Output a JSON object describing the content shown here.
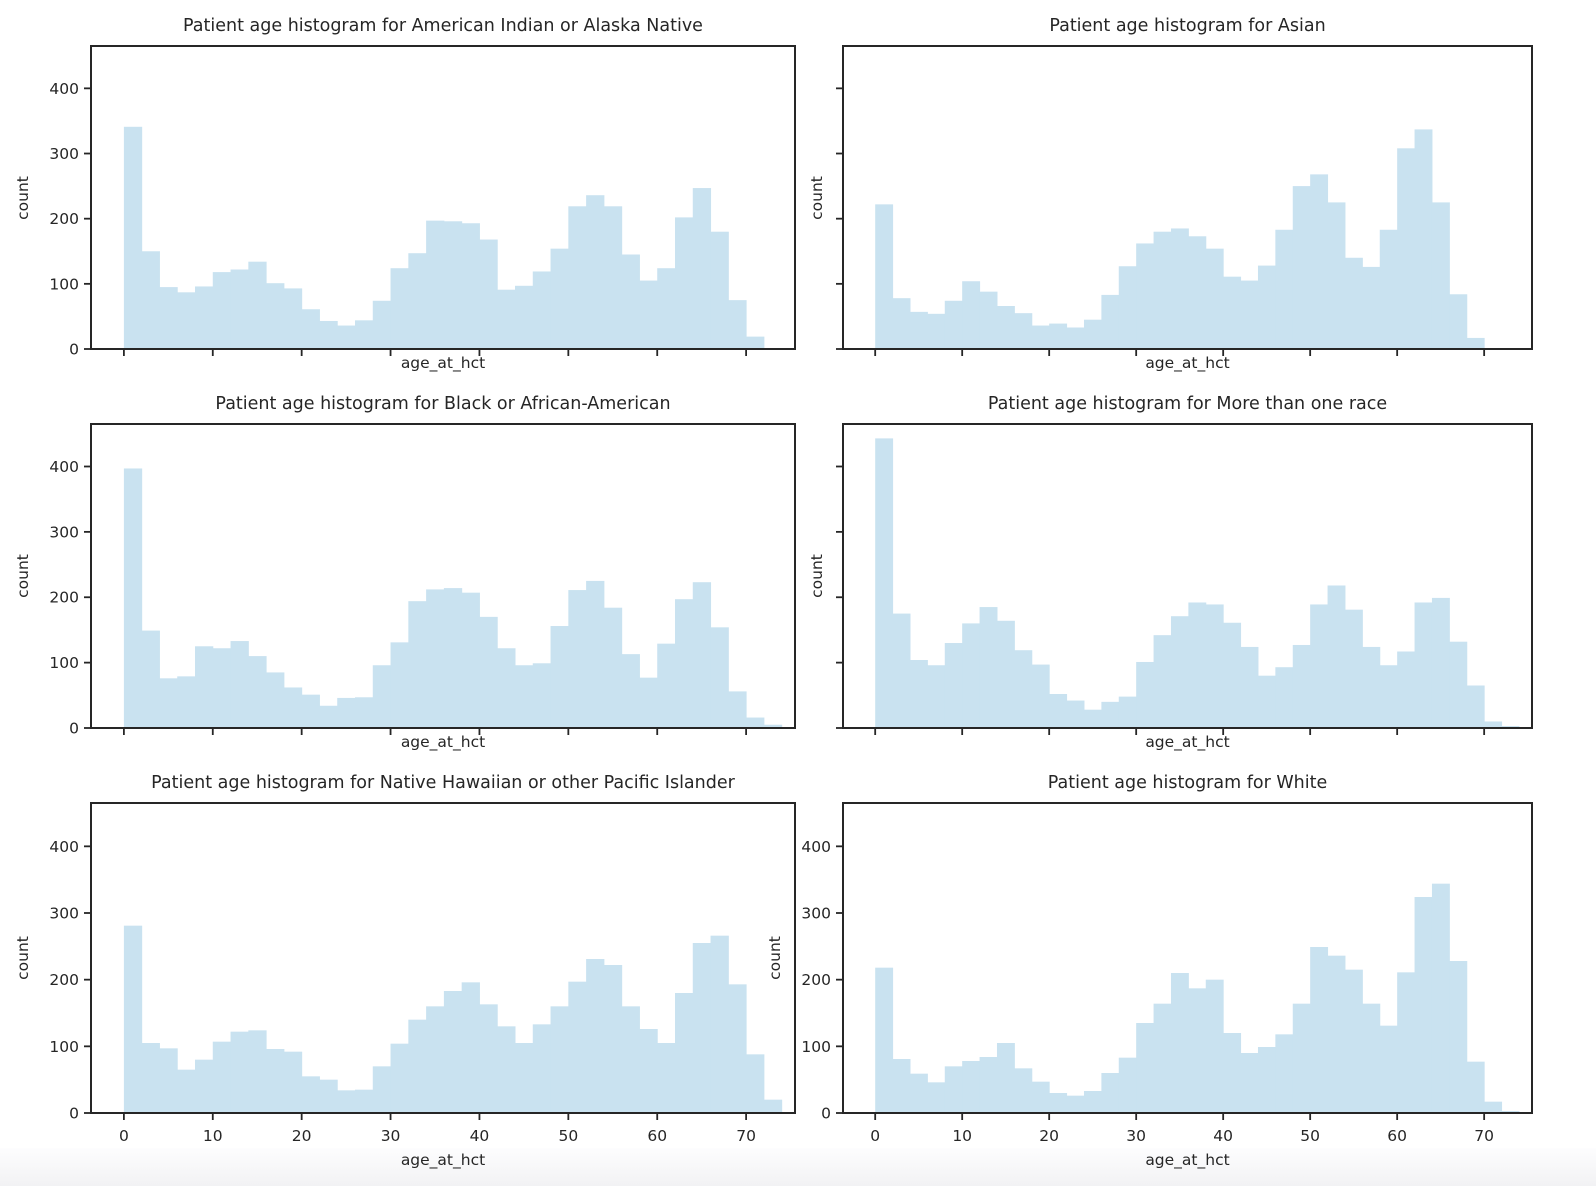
{
  "figure": {
    "kind": "matplotlib-style histogram grid",
    "grid": "3 rows x 2 columns",
    "shared_y_axis": true,
    "shared_x_axis": true
  },
  "styles": {
    "bar_fill": "#c9e2f0",
    "axis_color": "#262626",
    "text_color": "#262626",
    "page_background": "#ffffff",
    "footer_band": "#f2f2f4"
  },
  "chart_data": [
    {
      "type": "histogram",
      "title": "Patient age histogram for American Indian or Alaska Native",
      "xlabel": "age_at_hct",
      "ylabel": "count",
      "bin_start": 0,
      "bin_width": 2,
      "counts": [
        341,
        150,
        95,
        87,
        96,
        118,
        122,
        134,
        101,
        93,
        61,
        43,
        36,
        44,
        74,
        124,
        147,
        197,
        196,
        193,
        168,
        91,
        97,
        119,
        154,
        219,
        236,
        219,
        145,
        105,
        124,
        202,
        247,
        180,
        75,
        19,
        0
      ],
      "xticks": [
        0,
        10,
        20,
        30,
        40,
        50,
        60,
        70
      ],
      "yticks": [
        0,
        100,
        200,
        300,
        400
      ],
      "xlim": [
        -3.7,
        75.5
      ],
      "ylim": [
        0,
        465
      ],
      "show_xtick_labels": false,
      "show_ytick_labels": true
    },
    {
      "type": "histogram",
      "title": "Patient age histogram for Asian",
      "xlabel": "age_at_hct",
      "ylabel": "count",
      "bin_start": 0,
      "bin_width": 2,
      "counts": [
        222,
        78,
        57,
        54,
        74,
        104,
        88,
        66,
        55,
        36,
        39,
        33,
        45,
        83,
        127,
        162,
        180,
        185,
        173,
        154,
        111,
        105,
        128,
        183,
        250,
        268,
        225,
        140,
        126,
        183,
        308,
        337,
        225,
        84,
        17,
        0,
        0
      ],
      "xticks": [
        0,
        10,
        20,
        30,
        40,
        50,
        60,
        70
      ],
      "yticks": [
        0,
        100,
        200,
        300,
        400
      ],
      "xlim": [
        -3.7,
        75.5
      ],
      "ylim": [
        0,
        465
      ],
      "show_xtick_labels": false,
      "show_ytick_labels": false
    },
    {
      "type": "histogram",
      "title": "Patient age histogram for Black or African-American",
      "xlabel": "age_at_hct",
      "ylabel": "count",
      "bin_start": 0,
      "bin_width": 2,
      "counts": [
        397,
        149,
        76,
        79,
        125,
        122,
        133,
        110,
        85,
        62,
        51,
        34,
        46,
        47,
        96,
        131,
        194,
        212,
        214,
        207,
        170,
        122,
        96,
        99,
        156,
        211,
        225,
        184,
        113,
        77,
        129,
        197,
        223,
        154,
        56,
        16,
        5
      ],
      "xticks": [
        0,
        10,
        20,
        30,
        40,
        50,
        60,
        70
      ],
      "yticks": [
        0,
        100,
        200,
        300,
        400
      ],
      "xlim": [
        -3.7,
        75.5
      ],
      "ylim": [
        0,
        465
      ],
      "show_xtick_labels": false,
      "show_ytick_labels": true
    },
    {
      "type": "histogram",
      "title": "Patient age histogram for More than one race",
      "xlabel": "age_at_hct",
      "ylabel": "count",
      "bin_start": 0,
      "bin_width": 2,
      "counts": [
        443,
        175,
        104,
        96,
        130,
        160,
        185,
        164,
        119,
        97,
        52,
        42,
        28,
        40,
        48,
        101,
        142,
        171,
        192,
        189,
        161,
        124,
        80,
        93,
        127,
        189,
        218,
        181,
        124,
        96,
        117,
        192,
        199,
        132,
        65,
        10,
        3
      ],
      "xticks": [
        0,
        10,
        20,
        30,
        40,
        50,
        60,
        70
      ],
      "yticks": [
        0,
        100,
        200,
        300,
        400
      ],
      "xlim": [
        -3.7,
        75.5
      ],
      "ylim": [
        0,
        465
      ],
      "show_xtick_labels": false,
      "show_ytick_labels": false
    },
    {
      "type": "histogram",
      "title": "Patient age histogram for Native Hawaiian or other Pacific Islander",
      "xlabel": "age_at_hct",
      "ylabel": "count",
      "bin_start": 0,
      "bin_width": 2,
      "counts": [
        281,
        105,
        97,
        65,
        80,
        107,
        122,
        124,
        96,
        92,
        55,
        50,
        34,
        35,
        70,
        104,
        140,
        160,
        183,
        196,
        163,
        130,
        105,
        133,
        160,
        197,
        231,
        222,
        160,
        126,
        105,
        180,
        255,
        266,
        193,
        88,
        20
      ],
      "xticks": [
        0,
        10,
        20,
        30,
        40,
        50,
        60,
        70
      ],
      "yticks": [
        0,
        100,
        200,
        300,
        400
      ],
      "xlim": [
        -3.7,
        75.5
      ],
      "ylim": [
        0,
        465
      ],
      "show_xtick_labels": true,
      "show_ytick_labels": true
    },
    {
      "type": "histogram",
      "title": "Patient age histogram for White",
      "xlabel": "age_at_hct",
      "ylabel": "count",
      "bin_start": 0,
      "bin_width": 2,
      "counts": [
        218,
        81,
        59,
        46,
        70,
        78,
        84,
        105,
        67,
        47,
        30,
        26,
        33,
        60,
        83,
        135,
        164,
        210,
        187,
        200,
        120,
        90,
        99,
        118,
        164,
        249,
        236,
        215,
        164,
        131,
        211,
        324,
        344,
        228,
        77,
        17,
        3
      ],
      "xticks": [
        0,
        10,
        20,
        30,
        40,
        50,
        60,
        70
      ],
      "yticks": [
        0,
        100,
        200,
        300,
        400
      ],
      "xlim": [
        -3.7,
        75.5
      ],
      "ylim": [
        0,
        465
      ],
      "show_xtick_labels": true,
      "show_ytick_labels": true
    }
  ]
}
